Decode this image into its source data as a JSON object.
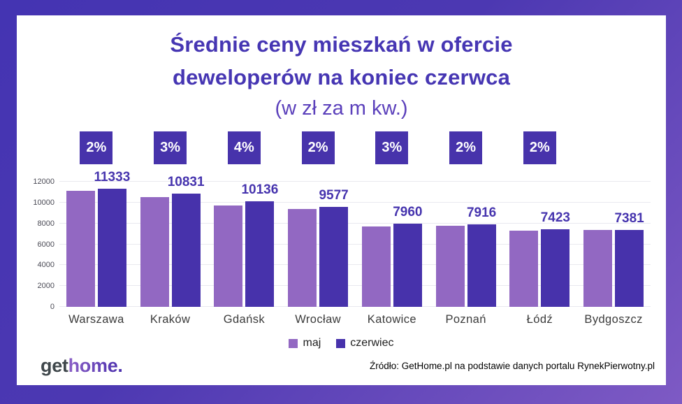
{
  "title": {
    "line1": "Średnie ceny mieszkań w ofercie",
    "line2": "deweloperów na koniec czerwca",
    "subtitle": "(w zł za m kw.)"
  },
  "chart_data": {
    "type": "bar",
    "title": "Średnie ceny mieszkań w ofercie deweloperów na koniec czerwca (w zł za m kw.)",
    "categories": [
      "Warszawa",
      "Kraków",
      "Gdańsk",
      "Wrocław",
      "Katowice",
      "Poznań",
      "Łódź",
      "Bydgoszcz"
    ],
    "series": [
      {
        "name": "maj",
        "color": "#9268c2",
        "values_estimated_from_bars": true,
        "values": [
          11120,
          10515,
          9745,
          9390,
          7715,
          7775,
          7305,
          7360
        ]
      },
      {
        "name": "czerwiec",
        "color": "#4732ab",
        "values": [
          11333,
          10831,
          10136,
          9577,
          7960,
          7916,
          7423,
          7381
        ]
      }
    ],
    "data_labels": {
      "on_series": "czerwiec",
      "values": [
        "11333",
        "10831",
        "10136",
        "9577",
        "7960",
        "7916",
        "7423",
        "7381"
      ]
    },
    "pct_change_badges": [
      "2%",
      "3%",
      "4%",
      "2%",
      "3%",
      "2%",
      "2%",
      null
    ],
    "ylim": [
      0,
      12000
    ],
    "yticks": [
      0,
      2000,
      4000,
      6000,
      8000,
      10000,
      12000
    ],
    "grid": true,
    "legend_position": "bottom"
  },
  "legend": [
    {
      "label": "maj",
      "color": "#9268c2"
    },
    {
      "label": "czerwiec",
      "color": "#4732ab"
    }
  ],
  "footer": {
    "logo_get": "get",
    "logo_home": "home.",
    "source": "Źródło: GetHome.pl na podstawie danych portalu RynekPierwotny.pl"
  },
  "colors": {
    "frame_gradient_start": "#4434b2",
    "frame_gradient_end": "#7e5ac4",
    "panel_bg": "#ffffff",
    "title_text": "#4636b3",
    "subtitle_text": "#5b40bb",
    "badge_bg": "#4733ab",
    "badge_text": "#ffffff",
    "bar_maj": "#9268c2",
    "bar_czerwiec": "#4732ab",
    "value_label": "#4634ae",
    "gridline": "#e9e9ef",
    "axis_text": "#4a4a55",
    "city_text": "#3b3b3b"
  }
}
